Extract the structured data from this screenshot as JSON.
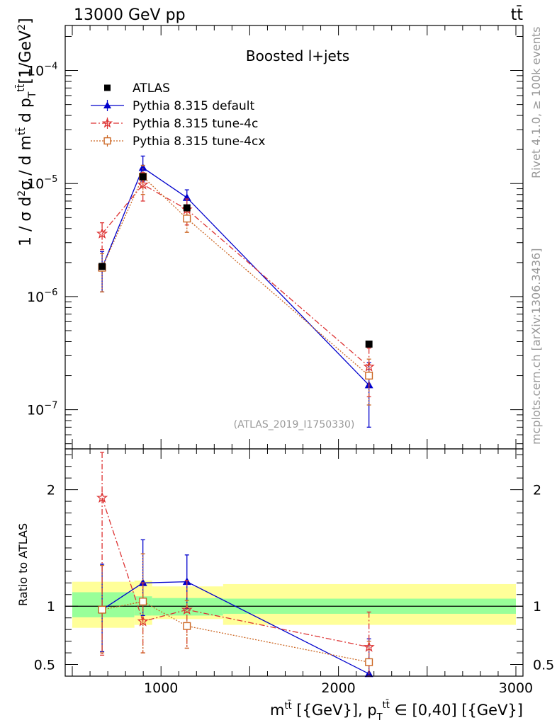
{
  "header": {
    "energy_label": "13000 GeV pp",
    "process_label": "tt̄",
    "right_note_top": "Rivet 4.1.0, ≥ 100k events",
    "right_note_bottom": "mcplots.cern.ch [arXiv:1306.3436]"
  },
  "chart_data": {
    "type": "line",
    "title": "Boosted l+jets",
    "watermark": "(ATLAS_2019_I1750330)",
    "xlabel": "m^{tt̄} [{GeV}], p_T^{tt̄} ∈ [0,40] [{GeV}]",
    "xlabel_parts": {
      "m": "m",
      "sup1": "tt̄",
      "mid": " [{GeV}], p",
      "sub": "T",
      "sup2": "tt̄",
      "end": " ∈ [0,40] [{GeV}]"
    },
    "ylabel": "1 / σ d²σ / d m^{tt̄} d p_T^{tt̄} [1/GeV²]",
    "ylabel_parts": {
      "a": "1 / σ d",
      "s1": "2",
      "b": "σ / d  m",
      "s2": "tt̄",
      "c": " d p",
      "sub": "T",
      "s3": "tt̄",
      "d": "[1/GeV",
      "s4": "2",
      "e": "]"
    },
    "ratio_ylabel": "Ratio to ATLAS",
    "xlim": [
      460,
      3040
    ],
    "ylim_log": [
      4.5e-08,
      0.00025
    ],
    "ratio_ylim": [
      0.4,
      2.35
    ],
    "x_ticks": [
      {
        "value": 1000,
        "label": "1000"
      },
      {
        "value": 2000,
        "label": "2000"
      },
      {
        "value": 3000,
        "label": "3000"
      }
    ],
    "y_ticks": [
      {
        "value": 1e-07,
        "base": "10",
        "exp": "−7"
      },
      {
        "value": 1e-06,
        "base": "10",
        "exp": "−6"
      },
      {
        "value": 1e-05,
        "base": "10",
        "exp": "−5"
      },
      {
        "value": 0.0001,
        "base": "10",
        "exp": "−4"
      }
    ],
    "ratio_ticks": [
      {
        "value": 0.5,
        "label": "0.5"
      },
      {
        "value": 1,
        "label": "1"
      },
      {
        "value": 2,
        "label": "2"
      }
    ],
    "bins": [
      {
        "lo": 500,
        "hi": 850,
        "x": 668
      },
      {
        "lo": 850,
        "hi": 950,
        "x": 898
      },
      {
        "lo": 950,
        "hi": 1350,
        "x": 1146
      },
      {
        "lo": 1350,
        "hi": 3000,
        "x": 2172
      }
    ],
    "data": {
      "name": "ATLAS",
      "values": [
        1.85e-06,
        1.15e-05,
        6.1e-06,
        3.8e-07
      ],
      "band_inner": [
        [
          0.905,
          1.12
        ],
        [
          0.92,
          1.085
        ],
        [
          0.92,
          1.07
        ],
        [
          0.935,
          1.065
        ]
      ],
      "band_outer": [
        [
          0.815,
          1.21
        ],
        [
          0.84,
          1.22
        ],
        [
          0.89,
          1.17
        ],
        [
          0.84,
          1.19
        ]
      ]
    },
    "series": [
      {
        "name": "Pythia 8.315 default",
        "color": "#0000cc",
        "marker": "triangle",
        "dash": "",
        "values": [
          1.8e-06,
          1.38e-05,
          7.5e-06,
          1.65e-07
        ],
        "err_lo": [
          1.1e-06,
          1.05e-05,
          6.3e-06,
          7e-08
        ],
        "err_hi": [
          2.5e-06,
          1.75e-05,
          8.8e-06,
          2.6e-07
        ],
        "ratio": [
          0.97,
          1.2,
          1.21,
          0.42
        ],
        "ratio_err": [
          [
            0.61,
            1.36
          ],
          [
            0.92,
            1.57
          ],
          [
            0.98,
            1.44
          ],
          [
            0.38,
            0.72
          ]
        ]
      },
      {
        "name": "Pythia 8.315 tune-4c",
        "color": "#dd3333",
        "marker": "star",
        "dash": "8 3 2 3",
        "values": [
          3.6e-06,
          9.8e-06,
          5.9e-06,
          2.4e-07
        ],
        "err_lo": [
          2.6e-06,
          7e-06,
          4.3e-06,
          1.3e-07
        ],
        "err_hi": [
          4.5e-06,
          1.25e-05,
          7.3e-06,
          3.5e-07
        ],
        "ratio": [
          1.93,
          0.87,
          0.97,
          0.65
        ],
        "ratio_err": [
          [
            0.58,
            2.32
          ],
          [
            0.6,
            1.2
          ],
          [
            0.64,
            1.22
          ],
          [
            0.38,
            0.95
          ]
        ]
      },
      {
        "name": "Pythia 8.315 tune-4cx",
        "color": "#cc6622",
        "marker": "square",
        "dash": "2 2",
        "values": [
          1.8e-06,
          1.15e-05,
          4.9e-06,
          2e-07
        ],
        "err_lo": [
          1.1e-06,
          8e-06,
          3.7e-06,
          1.1e-07
        ],
        "err_hi": [
          2.4e-06,
          1.45e-05,
          6.1e-06,
          2.8e-07
        ],
        "ratio": [
          0.97,
          1.04,
          0.83,
          0.52
        ],
        "ratio_err": [
          [
            0.6,
            1.35
          ],
          [
            0.6,
            1.45
          ],
          [
            0.64,
            1.05
          ],
          [
            0.38,
            0.7
          ]
        ]
      }
    ]
  }
}
